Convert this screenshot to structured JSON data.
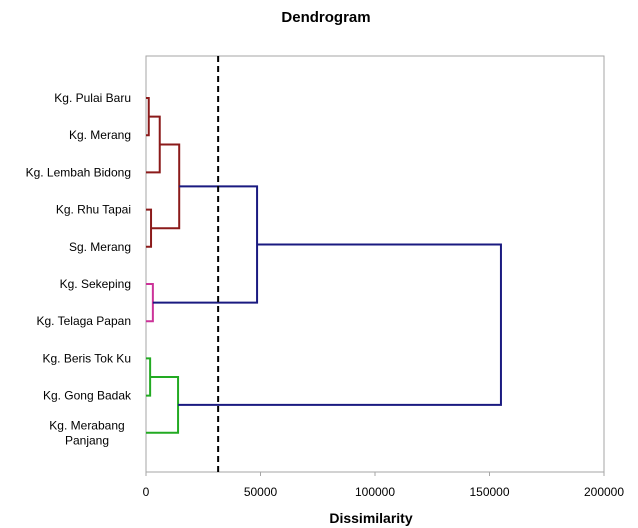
{
  "chart_data": {
    "type": "dendrogram",
    "title": "Dendrogram",
    "xlabel": "Dissimilarity",
    "ylabel": "",
    "xlim": [
      0,
      200000
    ],
    "xticks": [
      0,
      50000,
      100000,
      150000,
      200000
    ],
    "xtick_labels": [
      "0",
      "50000",
      "100000",
      "150000",
      "200000"
    ],
    "grid": false,
    "leaves": [
      {
        "label_lines": [
          "Kg. Pulai Baru"
        ]
      },
      {
        "label_lines": [
          "Kg. Merang"
        ]
      },
      {
        "label_lines": [
          "Kg. Lembah Bidong"
        ]
      },
      {
        "label_lines": [
          "Kg. Rhu Tapai"
        ]
      },
      {
        "label_lines": [
          "Sg. Merang"
        ]
      },
      {
        "label_lines": [
          "Kg. Sekeping"
        ]
      },
      {
        "label_lines": [
          "Kg. Telaga Papan"
        ]
      },
      {
        "label_lines": [
          "Kg. Beris Tok Ku"
        ]
      },
      {
        "label_lines": [
          "Kg. Gong Badak"
        ]
      },
      {
        "label_lines": [
          "Kg. Merabang",
          "Panjang"
        ]
      }
    ],
    "cluster_colors": {
      "cluster1": "#8b1a1a",
      "cluster2": "#cc3399",
      "cluster3": "#22aa22",
      "upper": "#1a1a80"
    },
    "merges": [
      {
        "id": "m1",
        "children": [
          "L0",
          "L1"
        ],
        "height": 1200,
        "color": "cluster1"
      },
      {
        "id": "m2",
        "children": [
          "m1",
          "L2"
        ],
        "height": 6000,
        "color": "cluster1"
      },
      {
        "id": "m3",
        "children": [
          "L3",
          "L4"
        ],
        "height": 2200,
        "color": "cluster1"
      },
      {
        "id": "m4",
        "children": [
          "m2",
          "m3"
        ],
        "height": 14500,
        "color": "cluster1"
      },
      {
        "id": "m5",
        "children": [
          "L5",
          "L6"
        ],
        "height": 3000,
        "color": "cluster2"
      },
      {
        "id": "m6",
        "children": [
          "m4",
          "m5"
        ],
        "height": 48500,
        "color": "upper"
      },
      {
        "id": "m7",
        "children": [
          "L7",
          "L8"
        ],
        "height": 1800,
        "color": "cluster3"
      },
      {
        "id": "m8",
        "children": [
          "m7",
          "L9"
        ],
        "height": 14000,
        "color": "cluster3"
      },
      {
        "id": "m9",
        "children": [
          "m6",
          "m8"
        ],
        "height": 155000,
        "color": "upper"
      }
    ],
    "cut_line": {
      "value": 31500,
      "style": "dashed"
    }
  }
}
